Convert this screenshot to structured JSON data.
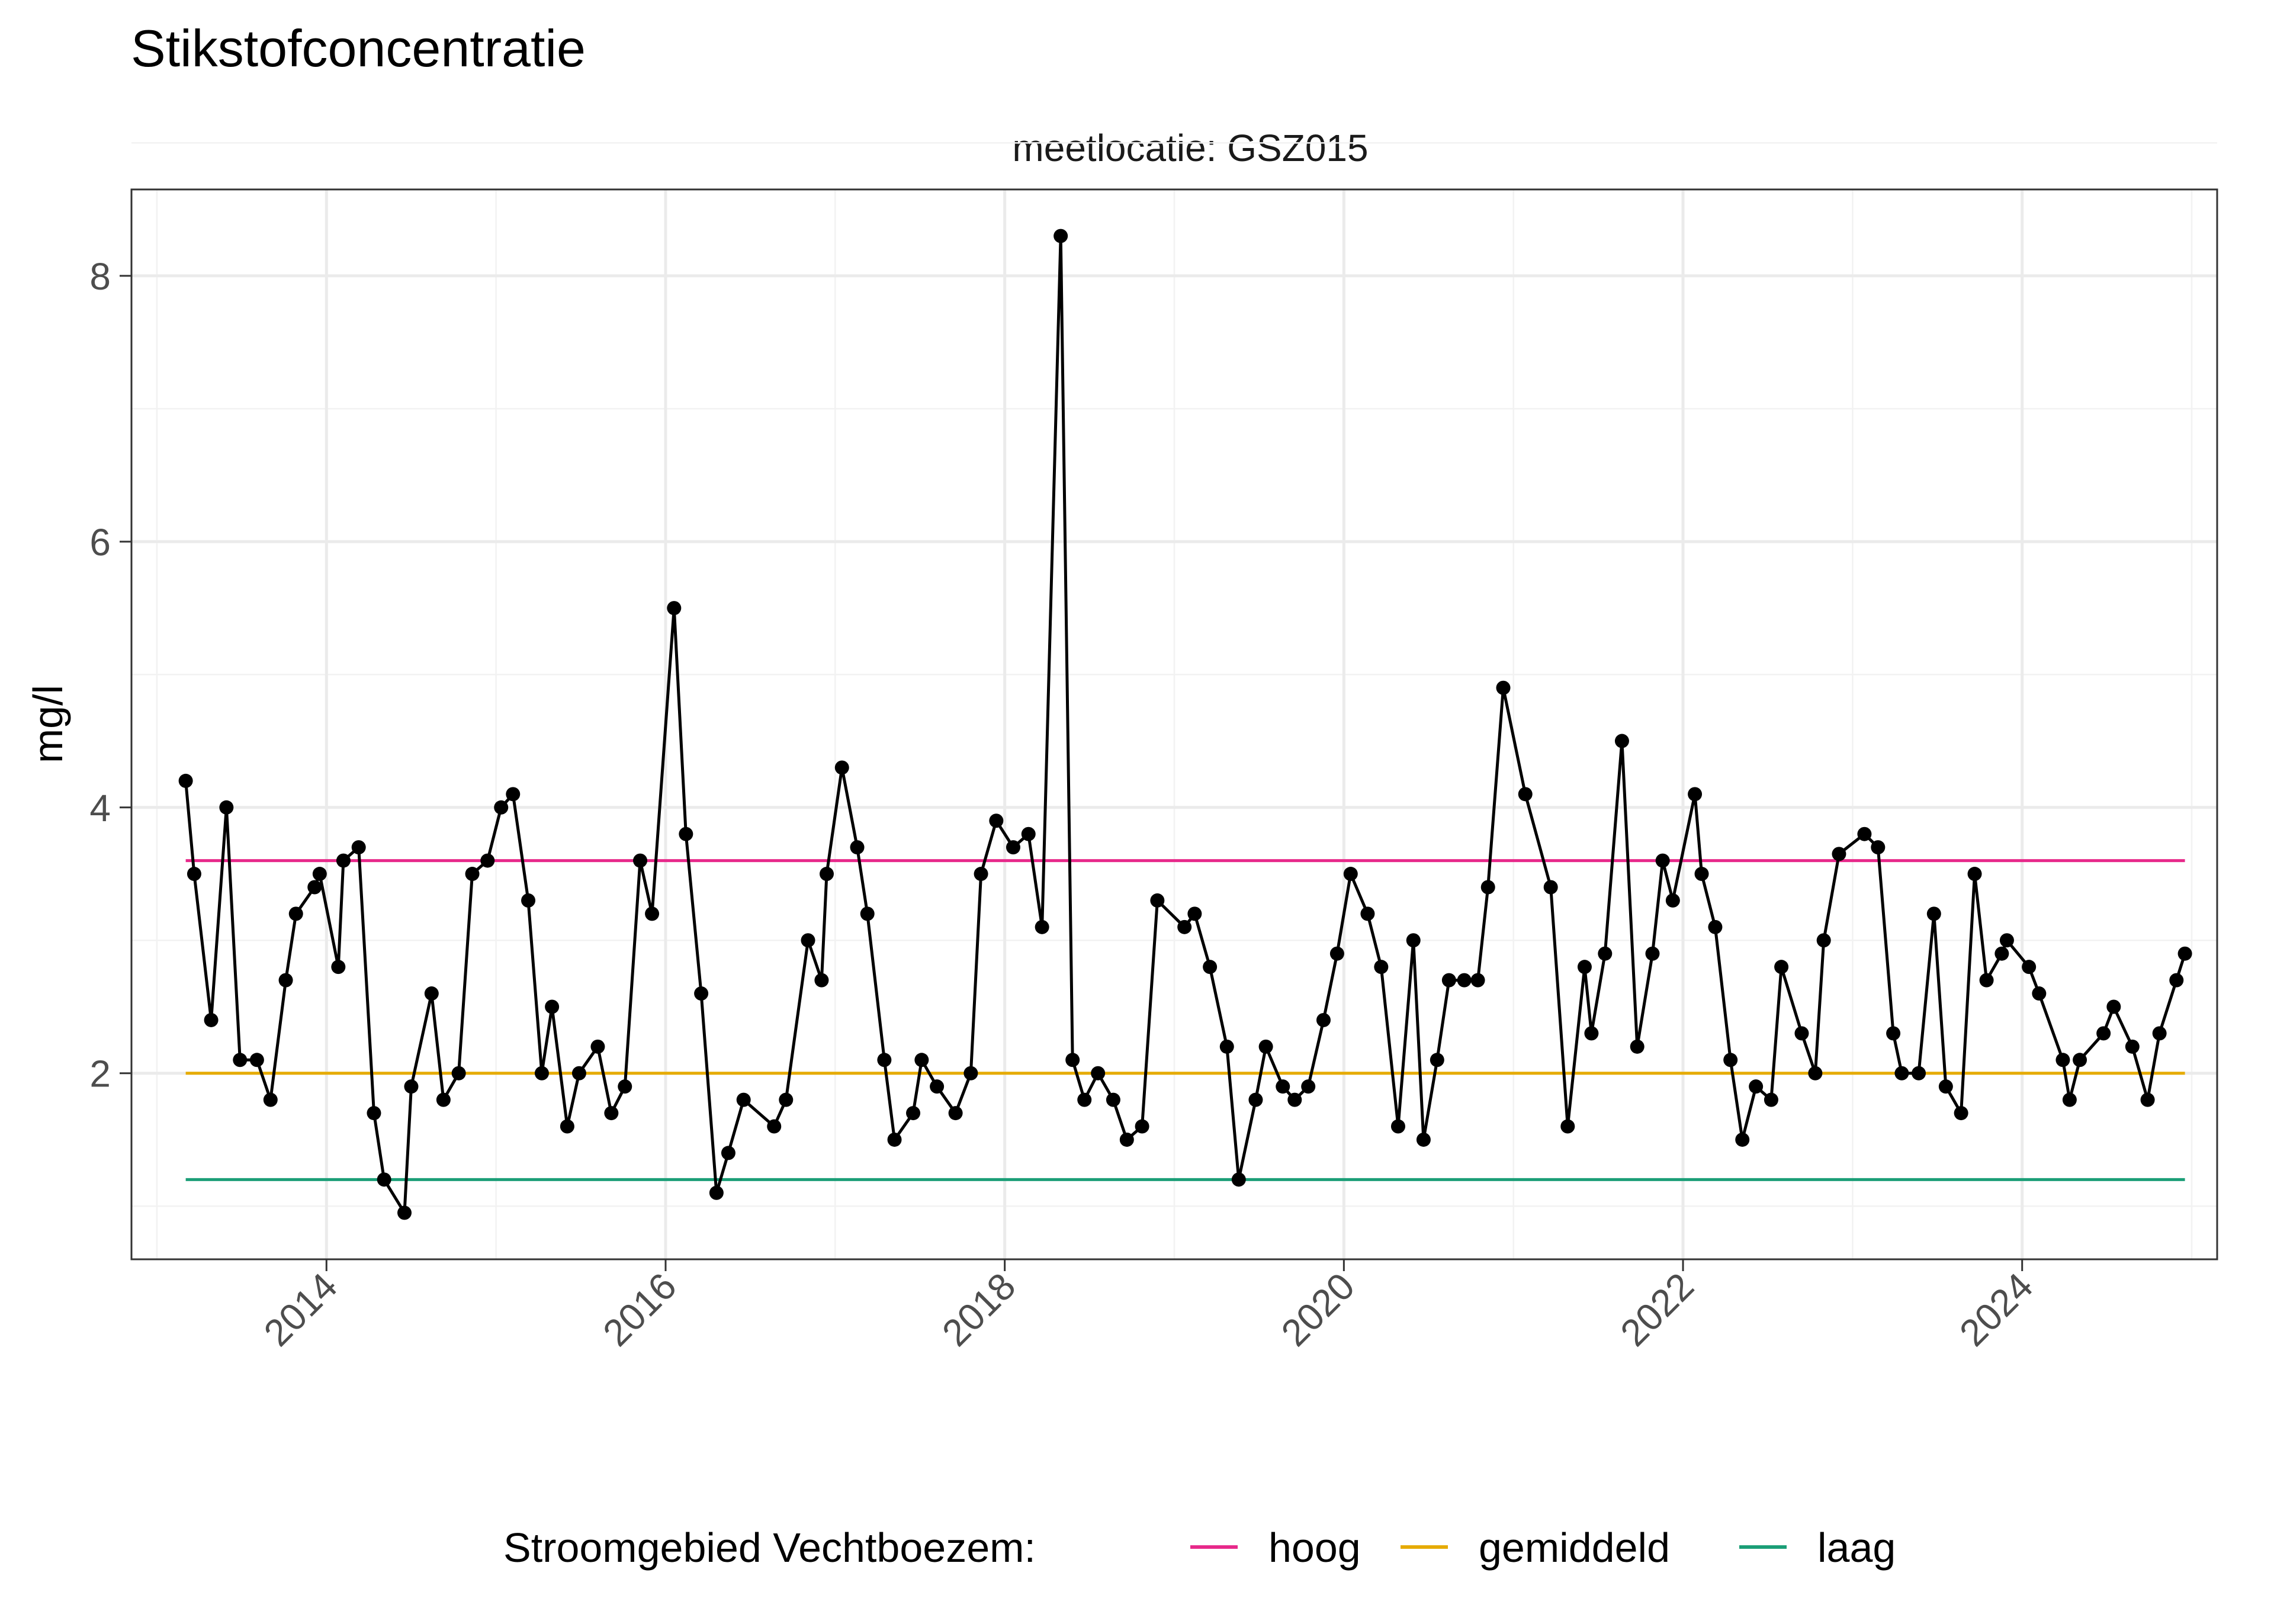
{
  "chart_data": {
    "type": "line",
    "title": "Stikstofconcentratie",
    "subtitle": "meetlocatie: GSZ015",
    "xlabel": "",
    "ylabel": "mg/l",
    "x_ticks": [
      "2014",
      "2016",
      "2018",
      "2020",
      "2022",
      "2024"
    ],
    "y_ticks": [
      "2",
      "4",
      "6",
      "8"
    ],
    "xlim": [
      2012.85,
      2025.15
    ],
    "ylim": [
      0.6,
      8.65
    ],
    "grid": true,
    "legend": {
      "position": "bottom",
      "title": "Stroomgebied Vechtboezem:",
      "items": [
        {
          "label": "hoog",
          "color": "#e7298a"
        },
        {
          "label": "gemiddeld",
          "color": "#e6ab02"
        },
        {
          "label": "laag",
          "color": "#1b9e77"
        }
      ]
    },
    "reference_lines": [
      {
        "label": "hoog",
        "y": 3.6,
        "x_range": [
          2013.17,
          2024.96
        ],
        "color": "#e7298a"
      },
      {
        "label": "gemiddeld",
        "y": 2.0,
        "x_range": [
          2013.17,
          2024.96
        ],
        "color": "#e6ab02"
      },
      {
        "label": "laag",
        "y": 1.2,
        "x_range": [
          2013.17,
          2024.96
        ],
        "color": "#1b9e77"
      }
    ],
    "series": [
      {
        "color": "#000000",
        "points": [
          [
            2013.17,
            4.2
          ],
          [
            2013.22,
            3.5
          ],
          [
            2013.32,
            2.4
          ],
          [
            2013.41,
            4.0
          ],
          [
            2013.49,
            2.1
          ],
          [
            2013.59,
            2.1
          ],
          [
            2013.67,
            1.8
          ],
          [
            2013.76,
            2.7
          ],
          [
            2013.82,
            3.2
          ],
          [
            2013.93,
            3.4
          ],
          [
            2013.96,
            3.5
          ],
          [
            2014.07,
            2.8
          ],
          [
            2014.1,
            3.6
          ],
          [
            2014.19,
            3.7
          ],
          [
            2014.28,
            1.7
          ],
          [
            2014.34,
            1.2
          ],
          [
            2014.46,
            0.95
          ],
          [
            2014.5,
            1.9
          ],
          [
            2014.62,
            2.6
          ],
          [
            2014.69,
            1.8
          ],
          [
            2014.78,
            2.0
          ],
          [
            2014.86,
            3.5
          ],
          [
            2014.95,
            3.6
          ],
          [
            2015.03,
            4.0
          ],
          [
            2015.1,
            4.1
          ],
          [
            2015.19,
            3.3
          ],
          [
            2015.27,
            2.0
          ],
          [
            2015.33,
            2.5
          ],
          [
            2015.42,
            1.6
          ],
          [
            2015.49,
            2.0
          ],
          [
            2015.6,
            2.2
          ],
          [
            2015.68,
            1.7
          ],
          [
            2015.76,
            1.9
          ],
          [
            2015.85,
            3.6
          ],
          [
            2015.92,
            3.2
          ],
          [
            2016.05,
            5.5
          ],
          [
            2016.12,
            3.8
          ],
          [
            2016.21,
            2.6
          ],
          [
            2016.3,
            1.1
          ],
          [
            2016.37,
            1.4
          ],
          [
            2016.46,
            1.8
          ],
          [
            2016.64,
            1.6
          ],
          [
            2016.71,
            1.8
          ],
          [
            2016.84,
            3.0
          ],
          [
            2016.92,
            2.7
          ],
          [
            2016.95,
            3.5
          ],
          [
            2017.04,
            4.3
          ],
          [
            2017.13,
            3.7
          ],
          [
            2017.19,
            3.2
          ],
          [
            2017.29,
            2.1
          ],
          [
            2017.35,
            1.5
          ],
          [
            2017.46,
            1.7
          ],
          [
            2017.51,
            2.1
          ],
          [
            2017.6,
            1.9
          ],
          [
            2017.71,
            1.7
          ],
          [
            2017.8,
            2.0
          ],
          [
            2017.86,
            3.5
          ],
          [
            2017.95,
            3.9
          ],
          [
            2018.05,
            3.7
          ],
          [
            2018.14,
            3.8
          ],
          [
            2018.22,
            3.1
          ],
          [
            2018.33,
            8.3
          ],
          [
            2018.4,
            2.1
          ],
          [
            2018.47,
            1.8
          ],
          [
            2018.55,
            2.0
          ],
          [
            2018.64,
            1.8
          ],
          [
            2018.72,
            1.5
          ],
          [
            2018.81,
            1.6
          ],
          [
            2018.9,
            3.3
          ],
          [
            2019.06,
            3.1
          ],
          [
            2019.12,
            3.2
          ],
          [
            2019.21,
            2.8
          ],
          [
            2019.31,
            2.2
          ],
          [
            2019.38,
            1.2
          ],
          [
            2019.48,
            1.8
          ],
          [
            2019.54,
            2.2
          ],
          [
            2019.64,
            1.9
          ],
          [
            2019.71,
            1.8
          ],
          [
            2019.79,
            1.9
          ],
          [
            2019.88,
            2.4
          ],
          [
            2019.96,
            2.9
          ],
          [
            2020.04,
            3.5
          ],
          [
            2020.14,
            3.2
          ],
          [
            2020.22,
            2.8
          ],
          [
            2020.32,
            1.6
          ],
          [
            2020.41,
            3.0
          ],
          [
            2020.47,
            1.5
          ],
          [
            2020.55,
            2.1
          ],
          [
            2020.62,
            2.7
          ],
          [
            2020.71,
            2.7
          ],
          [
            2020.79,
            2.7
          ],
          [
            2020.85,
            3.4
          ],
          [
            2020.94,
            4.9
          ],
          [
            2021.07,
            4.1
          ],
          [
            2021.22,
            3.4
          ],
          [
            2021.32,
            1.6
          ],
          [
            2021.42,
            2.8
          ],
          [
            2021.46,
            2.3
          ],
          [
            2021.54,
            2.9
          ],
          [
            2021.64,
            4.5
          ],
          [
            2021.73,
            2.2
          ],
          [
            2021.82,
            2.9
          ],
          [
            2021.88,
            3.6
          ],
          [
            2021.94,
            3.3
          ],
          [
            2022.07,
            4.1
          ],
          [
            2022.11,
            3.5
          ],
          [
            2022.19,
            3.1
          ],
          [
            2022.28,
            2.1
          ],
          [
            2022.35,
            1.5
          ],
          [
            2022.43,
            1.9
          ],
          [
            2022.52,
            1.8
          ],
          [
            2022.58,
            2.8
          ],
          [
            2022.7,
            2.3
          ],
          [
            2022.78,
            2.0
          ],
          [
            2022.83,
            3.0
          ],
          [
            2022.92,
            3.65
          ],
          [
            2023.07,
            3.8
          ],
          [
            2023.15,
            3.7
          ],
          [
            2023.24,
            2.3
          ],
          [
            2023.29,
            2.0
          ],
          [
            2023.39,
            2.0
          ],
          [
            2023.48,
            3.2
          ],
          [
            2023.55,
            1.9
          ],
          [
            2023.64,
            1.7
          ],
          [
            2023.72,
            3.5
          ],
          [
            2023.79,
            2.7
          ],
          [
            2023.88,
            2.9
          ],
          [
            2023.91,
            3.0
          ],
          [
            2024.04,
            2.8
          ],
          [
            2024.1,
            2.6
          ],
          [
            2024.24,
            2.1
          ],
          [
            2024.28,
            1.8
          ],
          [
            2024.34,
            2.1
          ],
          [
            2024.48,
            2.3
          ],
          [
            2024.54,
            2.5
          ],
          [
            2024.65,
            2.2
          ],
          [
            2024.74,
            1.8
          ],
          [
            2024.81,
            2.3
          ],
          [
            2024.91,
            2.7
          ],
          [
            2024.96,
            2.9
          ]
        ]
      }
    ]
  }
}
